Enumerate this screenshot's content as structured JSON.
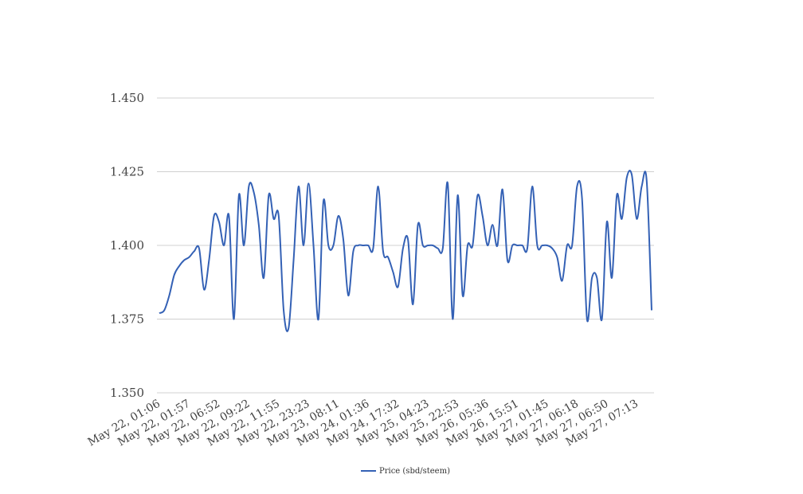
{
  "chart_data": {
    "type": "line",
    "title": "",
    "xlabel": "",
    "ylabel": "",
    "ylim": [
      1.35,
      1.45
    ],
    "y_ticks": [
      "1.350",
      "1.375",
      "1.400",
      "1.425",
      "1.450"
    ],
    "x_tick_labels": [
      "May 22, 01:06",
      "May 22, 01:57",
      "May 22, 06:52",
      "May 22, 09:22",
      "May 22, 11:55",
      "May 22, 23:23",
      "May 23, 08:11",
      "May 24, 01:36",
      "May 24, 17:32",
      "May 25, 04:23",
      "May 25, 22:53",
      "May 26, 05:36",
      "May 26, 15:51",
      "May 27, 01:45",
      "May 27, 06:18",
      "May 27, 06:50",
      "May 27, 07:13"
    ],
    "grid": "horizontal",
    "legend_position": "bottom",
    "series": [
      {
        "name": "Price (sbd/steem)",
        "color": "#3461b5",
        "values": [
          1.377,
          1.378,
          1.383,
          1.39,
          1.393,
          1.395,
          1.396,
          1.398,
          1.399,
          1.385,
          1.395,
          1.41,
          1.408,
          1.4,
          1.41,
          1.375,
          1.417,
          1.4,
          1.42,
          1.418,
          1.407,
          1.389,
          1.417,
          1.409,
          1.41,
          1.378,
          1.372,
          1.395,
          1.42,
          1.4,
          1.421,
          1.4,
          1.375,
          1.415,
          1.4,
          1.4,
          1.41,
          1.402,
          1.383,
          1.398,
          1.4,
          1.4,
          1.4,
          1.399,
          1.42,
          1.398,
          1.396,
          1.391,
          1.386,
          1.399,
          1.402,
          1.38,
          1.407,
          1.4,
          1.4,
          1.4,
          1.399,
          1.399,
          1.421,
          1.375,
          1.417,
          1.383,
          1.4,
          1.4,
          1.417,
          1.41,
          1.4,
          1.407,
          1.4,
          1.419,
          1.395,
          1.4,
          1.4,
          1.4,
          1.399,
          1.42,
          1.4,
          1.4,
          1.4,
          1.399,
          1.396,
          1.388,
          1.4,
          1.4,
          1.42,
          1.416,
          1.375,
          1.389,
          1.389,
          1.375,
          1.408,
          1.389,
          1.417,
          1.409,
          1.423,
          1.424,
          1.409,
          1.42,
          1.422,
          1.378
        ]
      }
    ]
  }
}
